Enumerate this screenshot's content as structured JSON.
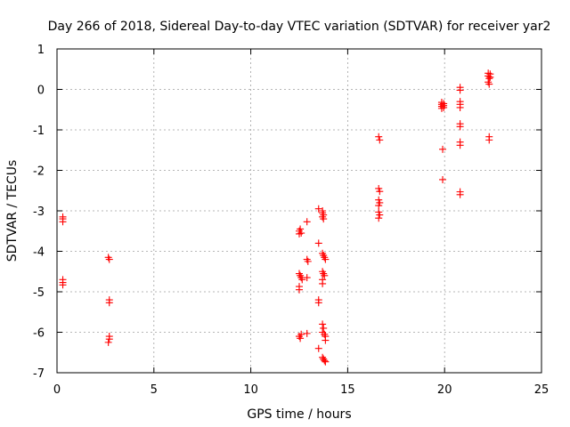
{
  "chart_data": {
    "type": "scatter",
    "title": "Day 266 of 2018, Sidereal Day-to-day VTEC variation (SDTVAR) for receiver yar2",
    "xlabel": "GPS time / hours",
    "ylabel": "SDTVAR / TECUs",
    "xlim": [
      0,
      25
    ],
    "ylim": [
      -7,
      1
    ],
    "xticks": [
      0,
      5,
      10,
      15,
      20,
      25
    ],
    "yticks": [
      -7,
      -6,
      -5,
      -4,
      -3,
      -2,
      -1,
      0,
      1
    ],
    "xtick_labels": [
      "0",
      "5",
      "10",
      "15",
      "20",
      "25"
    ],
    "ytick_labels": [
      "-7",
      "-6",
      "-5",
      "-4",
      "-3",
      "-2",
      "-1",
      "0",
      "1"
    ],
    "grid": true,
    "legend": "none",
    "marker": "plus",
    "color": "#ff0000",
    "series": [
      {
        "name": "SDTVAR",
        "points": [
          [
            0.3,
            -3.15
          ],
          [
            0.3,
            -3.2
          ],
          [
            0.3,
            -3.27
          ],
          [
            0.3,
            -4.7
          ],
          [
            0.3,
            -4.77
          ],
          [
            0.3,
            -4.83
          ],
          [
            2.65,
            -4.15
          ],
          [
            2.7,
            -4.2
          ],
          [
            2.7,
            -5.2
          ],
          [
            2.7,
            -5.27
          ],
          [
            2.7,
            -6.1
          ],
          [
            2.7,
            -6.17
          ],
          [
            2.65,
            -6.25
          ],
          [
            12.5,
            -3.5
          ],
          [
            12.5,
            -3.57
          ],
          [
            12.55,
            -3.45
          ],
          [
            12.6,
            -3.55
          ],
          [
            12.5,
            -4.55
          ],
          [
            12.55,
            -4.6
          ],
          [
            12.6,
            -4.65
          ],
          [
            12.65,
            -4.7
          ],
          [
            12.5,
            -4.87
          ],
          [
            12.5,
            -4.95
          ],
          [
            12.5,
            -6.1
          ],
          [
            12.55,
            -6.15
          ],
          [
            12.6,
            -6.05
          ],
          [
            12.9,
            -3.27
          ],
          [
            12.9,
            -4.2
          ],
          [
            12.95,
            -4.25
          ],
          [
            12.9,
            -4.65
          ],
          [
            12.9,
            -6.03
          ],
          [
            13.5,
            -2.95
          ],
          [
            13.5,
            -3.8
          ],
          [
            13.5,
            -5.2
          ],
          [
            13.5,
            -5.27
          ],
          [
            13.5,
            -6.4
          ],
          [
            13.7,
            -3.0
          ],
          [
            13.7,
            -3.05
          ],
          [
            13.75,
            -3.1
          ],
          [
            13.7,
            -3.15
          ],
          [
            13.75,
            -3.2
          ],
          [
            13.7,
            -4.05
          ],
          [
            13.75,
            -4.1
          ],
          [
            13.8,
            -4.15
          ],
          [
            13.85,
            -4.2
          ],
          [
            13.7,
            -4.5
          ],
          [
            13.75,
            -4.55
          ],
          [
            13.8,
            -4.6
          ],
          [
            13.7,
            -4.7
          ],
          [
            13.7,
            -4.8
          ],
          [
            13.7,
            -5.8
          ],
          [
            13.75,
            -5.9
          ],
          [
            13.7,
            -6.0
          ],
          [
            13.8,
            -6.05
          ],
          [
            13.85,
            -6.1
          ],
          [
            13.85,
            -6.2
          ],
          [
            13.7,
            -6.62
          ],
          [
            13.75,
            -6.66
          ],
          [
            13.8,
            -6.7
          ],
          [
            13.85,
            -6.73
          ],
          [
            16.6,
            -1.17
          ],
          [
            16.65,
            -1.25
          ],
          [
            16.6,
            -2.45
          ],
          [
            16.65,
            -2.52
          ],
          [
            16.6,
            -2.73
          ],
          [
            16.65,
            -2.8
          ],
          [
            16.6,
            -2.87
          ],
          [
            16.6,
            -3.03
          ],
          [
            16.65,
            -3.1
          ],
          [
            16.6,
            -3.18
          ],
          [
            19.85,
            -0.32
          ],
          [
            19.85,
            -0.37
          ],
          [
            19.85,
            -0.42
          ],
          [
            19.85,
            -0.47
          ],
          [
            19.95,
            -0.35
          ],
          [
            19.95,
            -0.4
          ],
          [
            19.95,
            -0.45
          ],
          [
            19.9,
            -1.48
          ],
          [
            19.9,
            -2.23
          ],
          [
            20.8,
            0.05
          ],
          [
            20.8,
            -0.02
          ],
          [
            20.8,
            -0.3
          ],
          [
            20.8,
            -0.37
          ],
          [
            20.8,
            -0.45
          ],
          [
            20.8,
            -0.85
          ],
          [
            20.8,
            -0.92
          ],
          [
            20.8,
            -1.3
          ],
          [
            20.8,
            -1.38
          ],
          [
            20.8,
            -2.53
          ],
          [
            20.8,
            -2.6
          ],
          [
            22.25,
            0.4
          ],
          [
            22.25,
            0.33
          ],
          [
            22.3,
            0.27
          ],
          [
            22.25,
            0.18
          ],
          [
            22.3,
            0.13
          ],
          [
            22.35,
            0.38
          ],
          [
            22.35,
            0.3
          ],
          [
            22.3,
            -1.17
          ],
          [
            22.3,
            -1.25
          ]
        ]
      }
    ]
  }
}
